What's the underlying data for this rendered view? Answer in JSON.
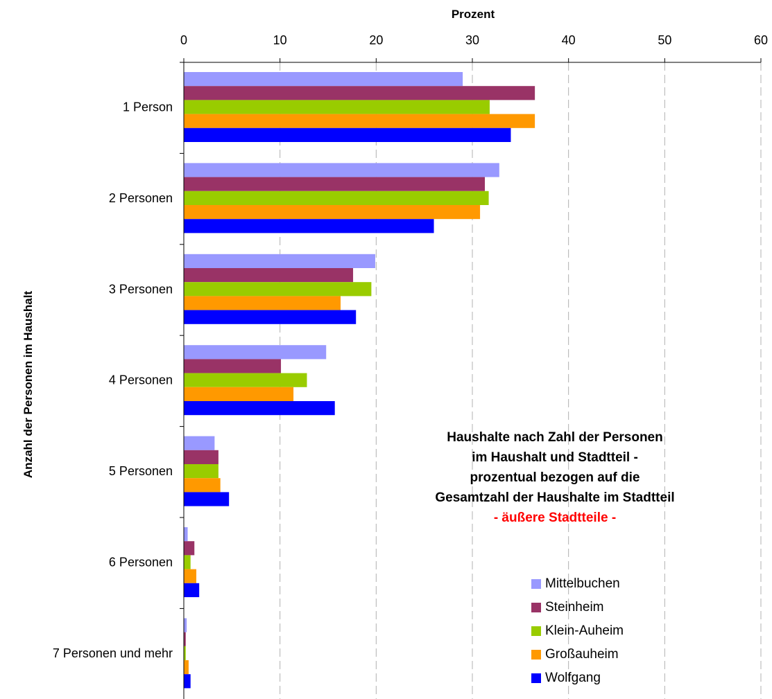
{
  "chart_data": {
    "type": "bar",
    "orientation": "horizontal",
    "xlabel": "Prozent",
    "ylabel": "Anzahl der Personen im Haushalt",
    "xlim": [
      0,
      60
    ],
    "xticks": [
      0,
      10,
      20,
      30,
      40,
      50,
      60
    ],
    "grid": "vertical dashed",
    "legend_position": "bottom-right",
    "categories": [
      "1 Person",
      "2 Personen",
      "3 Personen",
      "4 Personen",
      "5 Personen",
      "6 Personen",
      "7 Personen und mehr"
    ],
    "series": [
      {
        "name": "Mittelbuchen",
        "color": "#9999ff",
        "values": [
          29.0,
          32.8,
          19.9,
          14.8,
          3.2,
          0.4,
          0.3
        ]
      },
      {
        "name": "Steinheim",
        "color": "#993366",
        "values": [
          36.5,
          31.3,
          17.6,
          10.1,
          3.6,
          1.1,
          0.2
        ]
      },
      {
        "name": "Klein-Auheim",
        "color": "#99cc00",
        "values": [
          31.8,
          31.7,
          19.5,
          12.8,
          3.6,
          0.7,
          0.2
        ]
      },
      {
        "name": "Großauheim",
        "color": "#ff9900",
        "values": [
          36.5,
          30.8,
          16.3,
          11.4,
          3.8,
          1.3,
          0.5
        ]
      },
      {
        "name": "Wolfgang",
        "color": "#0000ff",
        "values": [
          34.0,
          26.0,
          17.9,
          15.7,
          4.7,
          1.6,
          0.7
        ]
      }
    ],
    "annotation": {
      "lines": [
        "Haushalte nach Zahl der Personen",
        "im Haushalt und Stadtteil -",
        "prozentual bezogen auf die",
        "Gesamtzahl der Haushalte im Stadtteil"
      ],
      "subtitle": "- äußere Stadtteile -",
      "subtitle_color": "#ff0000"
    }
  }
}
